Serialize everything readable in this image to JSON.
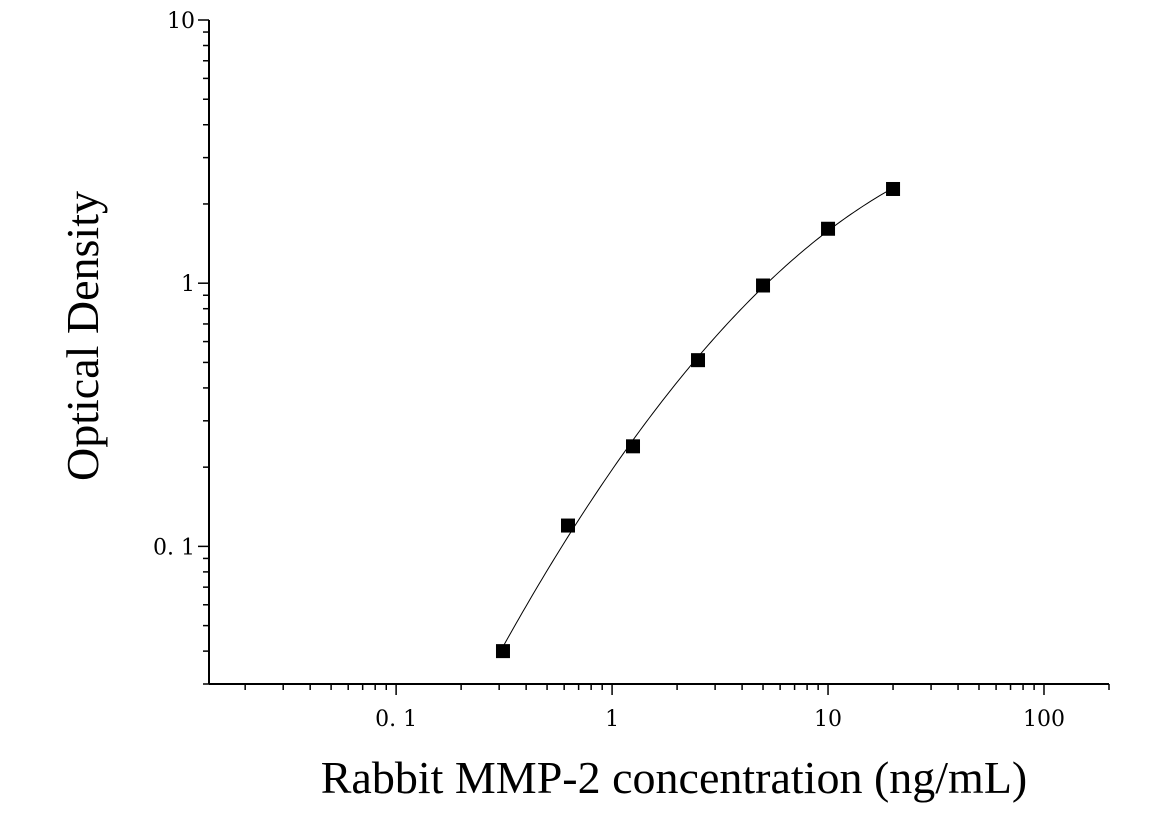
{
  "chart_data": {
    "type": "scatter",
    "title": "",
    "xlabel": "Rabbit MMP-2 concentration (ng/mL)",
    "ylabel": "Optical Density",
    "x_scale": "log",
    "y_scale": "log",
    "xlim": [
      0.0136,
      200
    ],
    "ylim": [
      0.03,
      10
    ],
    "x_tick_labels": [
      "0. 1",
      "1",
      "10",
      "100"
    ],
    "x_tick_values": [
      0.1,
      1,
      10,
      100
    ],
    "y_tick_labels": [
      "0. 1",
      "1",
      "10"
    ],
    "y_tick_values": [
      0.1,
      1,
      10
    ],
    "grid": false,
    "legend": "none",
    "marker": "square",
    "marker_color": "#000000",
    "fit_curve": true,
    "series": [
      {
        "x": [
          0.3125,
          0.625,
          1.25,
          2.5,
          5,
          10,
          20
        ],
        "y": [
          0.04,
          0.12,
          0.24,
          0.51,
          0.98,
          1.61,
          2.28
        ]
      }
    ]
  }
}
